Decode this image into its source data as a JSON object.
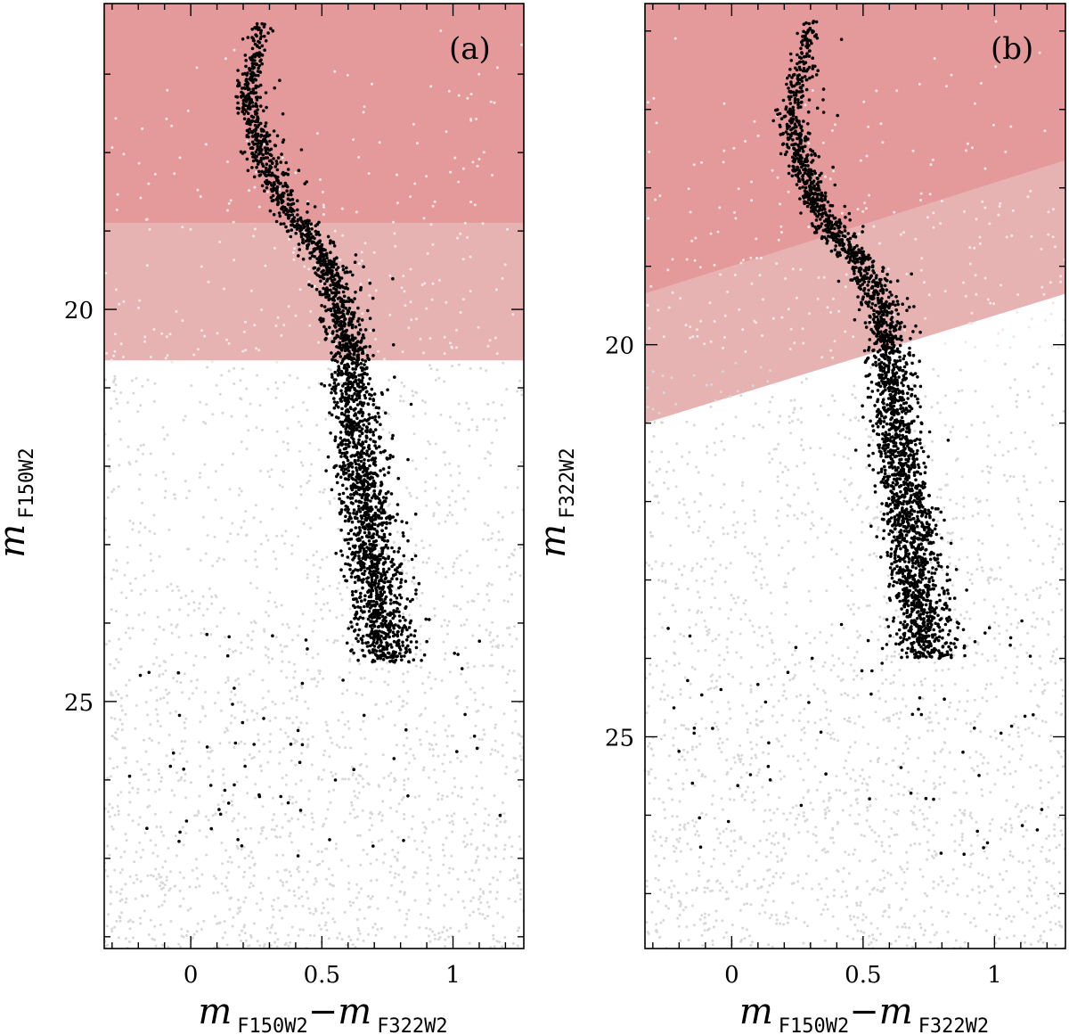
{
  "chart_data": [
    {
      "type": "scatter",
      "panel_label": "(a)",
      "xlabel": {
        "main1": "m",
        "sub1": "F150W2",
        "dash": "−",
        "main2": "m",
        "sub2": "F322W2"
      },
      "ylabel": {
        "main": "m",
        "sub": "F150W2"
      },
      "xlim": [
        -0.33,
        1.27
      ],
      "ylim": [
        28.15,
        16.1
      ],
      "y_inverted": true,
      "xticks": [
        0,
        0.5,
        1
      ],
      "xtick_labels": [
        "0",
        "0.5",
        "1"
      ],
      "yticks": [
        20,
        25
      ],
      "ytick_labels": [
        "20",
        "25"
      ],
      "shaded_regions": [
        {
          "shape": "band",
          "mag_top": 16.1,
          "mag_bottom": 18.9,
          "color": "#e49a9a"
        },
        {
          "shape": "band",
          "mag_top": 18.9,
          "mag_bottom": 20.65,
          "color": "#e6b2b2"
        }
      ],
      "series": [
        {
          "role": "field",
          "color": "#d8d8d8"
        },
        {
          "role": "cluster",
          "color": "#000000"
        }
      ],
      "ridge_line": [
        [
          0.27,
          16.3
        ],
        [
          0.23,
          17.0
        ],
        [
          0.22,
          17.3
        ],
        [
          0.26,
          17.9
        ],
        [
          0.3,
          18.3
        ],
        [
          0.36,
          18.7
        ],
        [
          0.45,
          19.1
        ],
        [
          0.53,
          19.5
        ],
        [
          0.57,
          20.0
        ],
        [
          0.6,
          20.6
        ],
        [
          0.62,
          21.2
        ],
        [
          0.64,
          21.8
        ],
        [
          0.66,
          22.4
        ],
        [
          0.68,
          23.0
        ],
        [
          0.71,
          23.6
        ],
        [
          0.73,
          24.1
        ],
        [
          0.75,
          24.5
        ]
      ],
      "cluster_count": 2600,
      "field_count": 2200
    },
    {
      "type": "scatter",
      "panel_label": "(b)",
      "xlabel": {
        "main1": "m",
        "sub1": "F150W2",
        "dash": "−",
        "main2": "m",
        "sub2": "F322W2"
      },
      "ylabel": {
        "main": "m",
        "sub": "F322W2"
      },
      "xlim": [
        -0.33,
        1.27
      ],
      "ylim": [
        27.7,
        15.65
      ],
      "y_inverted": true,
      "xticks": [
        0,
        0.5,
        1
      ],
      "xtick_labels": [
        "0",
        "0.5",
        "1"
      ],
      "yticks": [
        20,
        25
      ],
      "ytick_labels": [
        "20",
        "25"
      ],
      "shaded_regions": [
        {
          "shape": "tilted-band",
          "left_x": -0.33,
          "right_x": 1.27,
          "top_left": 15.65,
          "top_right": 15.65,
          "upper_boundary": [
            19.35,
            17.65
          ],
          "lower_boundary": [
            21.0,
            19.35
          ],
          "color_upper": "#e49a9a",
          "color_lower": "#e6b2b2"
        }
      ],
      "series": [
        {
          "role": "field",
          "color": "#d8d8d8"
        },
        {
          "role": "cluster",
          "color": "#000000"
        }
      ],
      "ridge_line": [
        [
          0.3,
          15.8
        ],
        [
          0.26,
          16.6
        ],
        [
          0.22,
          17.1
        ],
        [
          0.26,
          17.7
        ],
        [
          0.31,
          18.1
        ],
        [
          0.39,
          18.6
        ],
        [
          0.5,
          19.0
        ],
        [
          0.56,
          19.5
        ],
        [
          0.59,
          20.1
        ],
        [
          0.61,
          20.7
        ],
        [
          0.63,
          21.3
        ],
        [
          0.65,
          21.9
        ],
        [
          0.68,
          22.5
        ],
        [
          0.7,
          23.1
        ],
        [
          0.72,
          23.6
        ],
        [
          0.74,
          24.0
        ]
      ],
      "cluster_count": 2600,
      "field_count": 2200
    }
  ]
}
